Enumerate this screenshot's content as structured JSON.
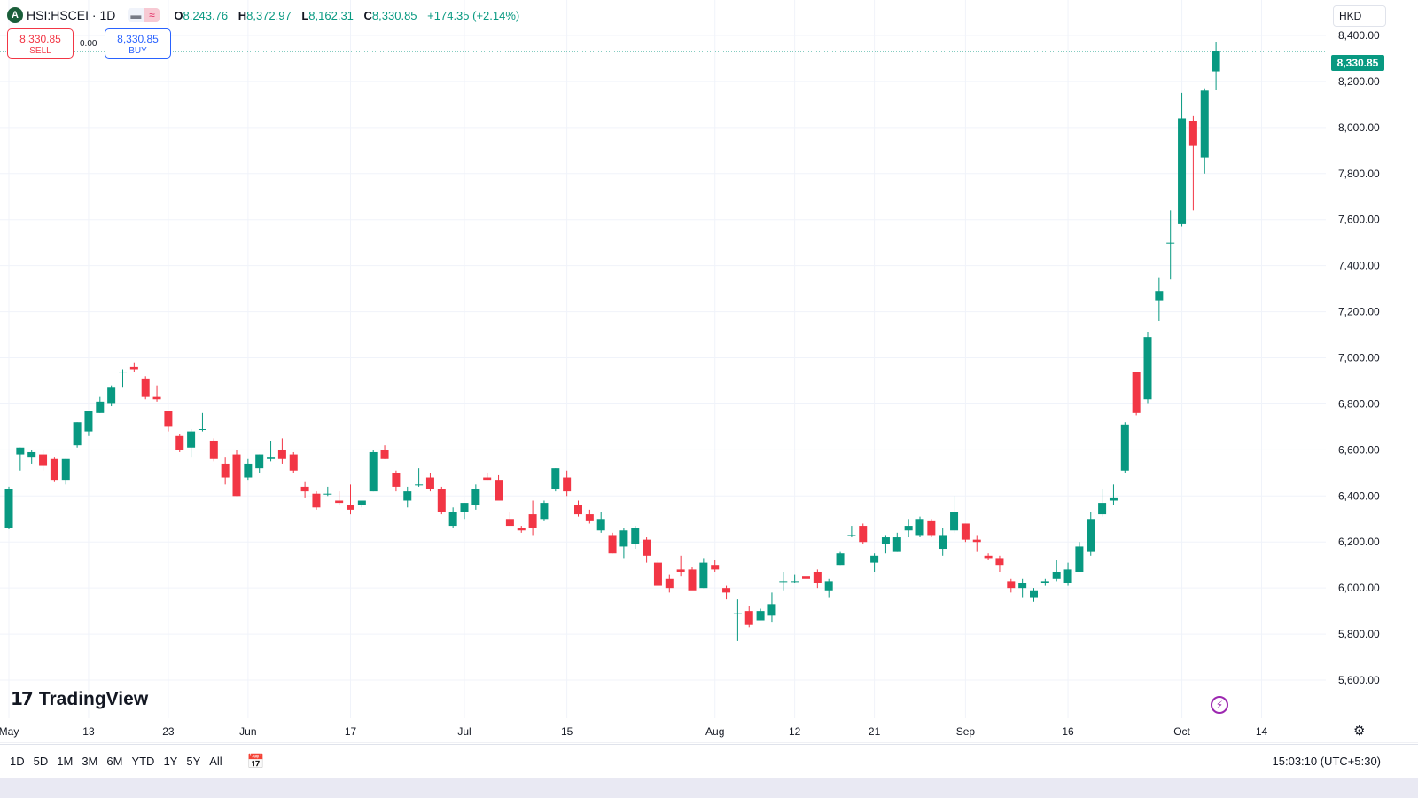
{
  "header": {
    "logo_letter": "A",
    "symbol": "HSI:HSCEI · 1D",
    "ohlc": {
      "o_label": "O",
      "o": "8,243.76",
      "h_label": "H",
      "h": "8,372.97",
      "l_label": "L",
      "l": "8,162.31",
      "c_label": "C",
      "c": "8,330.85",
      "change": "+174.35 (+2.14%)"
    }
  },
  "trade": {
    "sell_price": "8,330.85",
    "sell_label": "SELL",
    "spread": "0.00",
    "buy_price": "8,330.85",
    "buy_label": "BUY"
  },
  "currency": "HKD",
  "last_price_label": "8,330.85",
  "branding": {
    "name": "TradingView"
  },
  "toolbar": {
    "ranges": [
      "1D",
      "5D",
      "1M",
      "3M",
      "6M",
      "YTD",
      "1Y",
      "5Y",
      "All"
    ],
    "clock": "15:03:10 (UTC+5:30)"
  },
  "colors": {
    "up": "#089981",
    "down": "#f23645",
    "grid": "#f0f3fa"
  },
  "icons": [
    "calendar-icon",
    "gear-icon",
    "flash-icon"
  ],
  "chart_data": {
    "type": "candlestick",
    "interval": "1D",
    "ylim": [
      5500,
      8450
    ],
    "yticks": [
      5600,
      5800,
      6000,
      6200,
      6400,
      6600,
      6800,
      7000,
      7200,
      7400,
      7600,
      7800,
      8000,
      8200,
      8400
    ],
    "ytick_labels": [
      "5,600.00",
      "5,800.00",
      "6,000.00",
      "6,200.00",
      "6,400.00",
      "6,600.00",
      "6,800.00",
      "7,000.00",
      "7,200.00",
      "7,400.00",
      "7,600.00",
      "7,800.00",
      "8,000.00",
      "8,200.00",
      "8,400.00"
    ],
    "xticks": [
      {
        "i": 0,
        "label": "May"
      },
      {
        "i": 7,
        "label": "13"
      },
      {
        "i": 14,
        "label": "23"
      },
      {
        "i": 21,
        "label": "Jun"
      },
      {
        "i": 30,
        "label": "17"
      },
      {
        "i": 40,
        "label": "Jul"
      },
      {
        "i": 49,
        "label": "15"
      },
      {
        "i": 62,
        "label": "Aug"
      },
      {
        "i": 69,
        "label": "12"
      },
      {
        "i": 76,
        "label": "21"
      },
      {
        "i": 84,
        "label": "Sep"
      },
      {
        "i": 93,
        "label": "16"
      },
      {
        "i": 103,
        "label": "Oct"
      },
      {
        "i": 110,
        "label": "14"
      }
    ],
    "last_price": 8330.85,
    "candles": [
      {
        "o": 6260,
        "h": 6440,
        "l": 6255,
        "c": 6430
      },
      {
        "o": 6580,
        "h": 6610,
        "l": 6510,
        "c": 6610
      },
      {
        "o": 6570,
        "h": 6600,
        "l": 6540,
        "c": 6590
      },
      {
        "o": 6580,
        "h": 6600,
        "l": 6510,
        "c": 6530
      },
      {
        "o": 6560,
        "h": 6570,
        "l": 6460,
        "c": 6470
      },
      {
        "o": 6470,
        "h": 6560,
        "l": 6450,
        "c": 6560
      },
      {
        "o": 6620,
        "h": 6720,
        "l": 6610,
        "c": 6720
      },
      {
        "o": 6680,
        "h": 6770,
        "l": 6660,
        "c": 6770
      },
      {
        "o": 6760,
        "h": 6830,
        "l": 6760,
        "c": 6810
      },
      {
        "o": 6800,
        "h": 6880,
        "l": 6790,
        "c": 6870
      },
      {
        "o": 6940,
        "h": 6950,
        "l": 6870,
        "c": 6940
      },
      {
        "o": 6960,
        "h": 6980,
        "l": 6940,
        "c": 6950
      },
      {
        "o": 6910,
        "h": 6920,
        "l": 6820,
        "c": 6830
      },
      {
        "o": 6830,
        "h": 6880,
        "l": 6810,
        "c": 6820
      },
      {
        "o": 6770,
        "h": 6770,
        "l": 6680,
        "c": 6700
      },
      {
        "o": 6660,
        "h": 6670,
        "l": 6590,
        "c": 6600
      },
      {
        "o": 6610,
        "h": 6690,
        "l": 6570,
        "c": 6680
      },
      {
        "o": 6690,
        "h": 6760,
        "l": 6680,
        "c": 6690
      },
      {
        "o": 6640,
        "h": 6650,
        "l": 6550,
        "c": 6560
      },
      {
        "o": 6540,
        "h": 6570,
        "l": 6450,
        "c": 6480
      },
      {
        "o": 6580,
        "h": 6600,
        "l": 6400,
        "c": 6400
      },
      {
        "o": 6480,
        "h": 6560,
        "l": 6470,
        "c": 6540
      },
      {
        "o": 6520,
        "h": 6580,
        "l": 6500,
        "c": 6580
      },
      {
        "o": 6560,
        "h": 6640,
        "l": 6550,
        "c": 6570
      },
      {
        "o": 6600,
        "h": 6650,
        "l": 6540,
        "c": 6560
      },
      {
        "o": 6580,
        "h": 6590,
        "l": 6500,
        "c": 6510
      },
      {
        "o": 6440,
        "h": 6460,
        "l": 6390,
        "c": 6420
      },
      {
        "o": 6410,
        "h": 6420,
        "l": 6340,
        "c": 6350
      },
      {
        "o": 6410,
        "h": 6440,
        "l": 6400,
        "c": 6410
      },
      {
        "o": 6380,
        "h": 6420,
        "l": 6360,
        "c": 6370
      },
      {
        "o": 6360,
        "h": 6450,
        "l": 6320,
        "c": 6340
      },
      {
        "o": 6360,
        "h": 6380,
        "l": 6350,
        "c": 6380
      },
      {
        "o": 6420,
        "h": 6600,
        "l": 6420,
        "c": 6590
      },
      {
        "o": 6600,
        "h": 6620,
        "l": 6560,
        "c": 6560
      },
      {
        "o": 6500,
        "h": 6510,
        "l": 6420,
        "c": 6440
      },
      {
        "o": 6380,
        "h": 6440,
        "l": 6350,
        "c": 6420
      },
      {
        "o": 6450,
        "h": 6520,
        "l": 6440,
        "c": 6450
      },
      {
        "o": 6480,
        "h": 6500,
        "l": 6420,
        "c": 6430
      },
      {
        "o": 6430,
        "h": 6440,
        "l": 6320,
        "c": 6330
      },
      {
        "o": 6270,
        "h": 6350,
        "l": 6260,
        "c": 6330
      },
      {
        "o": 6330,
        "h": 6370,
        "l": 6300,
        "c": 6370
      },
      {
        "o": 6360,
        "h": 6450,
        "l": 6340,
        "c": 6430
      },
      {
        "o": 6480,
        "h": 6500,
        "l": 6470,
        "c": 6470
      },
      {
        "o": 6470,
        "h": 6490,
        "l": 6380,
        "c": 6380
      },
      {
        "o": 6300,
        "h": 6330,
        "l": 6270,
        "c": 6270
      },
      {
        "o": 6260,
        "h": 6270,
        "l": 6240,
        "c": 6250
      },
      {
        "o": 6320,
        "h": 6380,
        "l": 6230,
        "c": 6260
      },
      {
        "o": 6300,
        "h": 6380,
        "l": 6290,
        "c": 6370
      },
      {
        "o": 6430,
        "h": 6520,
        "l": 6420,
        "c": 6520
      },
      {
        "o": 6480,
        "h": 6510,
        "l": 6400,
        "c": 6420
      },
      {
        "o": 6360,
        "h": 6380,
        "l": 6310,
        "c": 6320
      },
      {
        "o": 6320,
        "h": 6340,
        "l": 6280,
        "c": 6290
      },
      {
        "o": 6250,
        "h": 6330,
        "l": 6240,
        "c": 6300
      },
      {
        "o": 6230,
        "h": 6240,
        "l": 6150,
        "c": 6150
      },
      {
        "o": 6180,
        "h": 6260,
        "l": 6130,
        "c": 6250
      },
      {
        "o": 6190,
        "h": 6270,
        "l": 6170,
        "c": 6260
      },
      {
        "o": 6210,
        "h": 6220,
        "l": 6110,
        "c": 6140
      },
      {
        "o": 6110,
        "h": 6120,
        "l": 6010,
        "c": 6010
      },
      {
        "o": 6040,
        "h": 6060,
        "l": 5980,
        "c": 6000
      },
      {
        "o": 6080,
        "h": 6140,
        "l": 6050,
        "c": 6070
      },
      {
        "o": 6080,
        "h": 6090,
        "l": 6000,
        "c": 5990
      },
      {
        "o": 6000,
        "h": 6130,
        "l": 6000,
        "c": 6110
      },
      {
        "o": 6100,
        "h": 6120,
        "l": 6070,
        "c": 6080
      },
      {
        "o": 6000,
        "h": 6010,
        "l": 5950,
        "c": 5980
      },
      {
        "o": 5890,
        "h": 5950,
        "l": 5770,
        "c": 5890
      },
      {
        "o": 5900,
        "h": 5920,
        "l": 5830,
        "c": 5840
      },
      {
        "o": 5860,
        "h": 5910,
        "l": 5860,
        "c": 5900
      },
      {
        "o": 5880,
        "h": 5980,
        "l": 5850,
        "c": 5930
      },
      {
        "o": 6030,
        "h": 6070,
        "l": 5990,
        "c": 6030
      },
      {
        "o": 6030,
        "h": 6060,
        "l": 6020,
        "c": 6030
      },
      {
        "o": 6050,
        "h": 6080,
        "l": 6020,
        "c": 6040
      },
      {
        "o": 6070,
        "h": 6080,
        "l": 6000,
        "c": 6020
      },
      {
        "o": 5990,
        "h": 6040,
        "l": 5960,
        "c": 6030
      },
      {
        "o": 6100,
        "h": 6160,
        "l": 6100,
        "c": 6150
      },
      {
        "o": 6230,
        "h": 6270,
        "l": 6220,
        "c": 6230
      },
      {
        "o": 6270,
        "h": 6280,
        "l": 6190,
        "c": 6200
      },
      {
        "o": 6110,
        "h": 6150,
        "l": 6070,
        "c": 6140
      },
      {
        "o": 6190,
        "h": 6230,
        "l": 6150,
        "c": 6220
      },
      {
        "o": 6160,
        "h": 6240,
        "l": 6160,
        "c": 6220
      },
      {
        "o": 6250,
        "h": 6300,
        "l": 6220,
        "c": 6270
      },
      {
        "o": 6230,
        "h": 6310,
        "l": 6220,
        "c": 6300
      },
      {
        "o": 6290,
        "h": 6300,
        "l": 6220,
        "c": 6230
      },
      {
        "o": 6170,
        "h": 6260,
        "l": 6140,
        "c": 6230
      },
      {
        "o": 6250,
        "h": 6400,
        "l": 6240,
        "c": 6330
      },
      {
        "o": 6280,
        "h": 6280,
        "l": 6200,
        "c": 6210
      },
      {
        "o": 6210,
        "h": 6230,
        "l": 6160,
        "c": 6200
      },
      {
        "o": 6140,
        "h": 6150,
        "l": 6120,
        "c": 6130
      },
      {
        "o": 6130,
        "h": 6140,
        "l": 6070,
        "c": 6100
      },
      {
        "o": 6030,
        "h": 6040,
        "l": 5980,
        "c": 6000
      },
      {
        "o": 6000,
        "h": 6040,
        "l": 5960,
        "c": 6020
      },
      {
        "o": 5960,
        "h": 6000,
        "l": 5940,
        "c": 5990
      },
      {
        "o": 6020,
        "h": 6040,
        "l": 6010,
        "c": 6030
      },
      {
        "o": 6040,
        "h": 6120,
        "l": 6030,
        "c": 6070
      },
      {
        "o": 6020,
        "h": 6110,
        "l": 6010,
        "c": 6080
      },
      {
        "o": 6070,
        "h": 6200,
        "l": 6070,
        "c": 6180
      },
      {
        "o": 6160,
        "h": 6330,
        "l": 6140,
        "c": 6300
      },
      {
        "o": 6320,
        "h": 6430,
        "l": 6310,
        "c": 6370
      },
      {
        "o": 6380,
        "h": 6450,
        "l": 6360,
        "c": 6390
      },
      {
        "o": 6510,
        "h": 6720,
        "l": 6500,
        "c": 6710
      },
      {
        "o": 6940,
        "h": 6940,
        "l": 6750,
        "c": 6760
      },
      {
        "o": 6820,
        "h": 7110,
        "l": 6800,
        "c": 7090
      },
      {
        "o": 7250,
        "h": 7350,
        "l": 7160,
        "c": 7290
      },
      {
        "o": 7500,
        "h": 7640,
        "l": 7340,
        "c": 7500
      },
      {
        "o": 7580,
        "h": 8150,
        "l": 7570,
        "c": 8040
      },
      {
        "o": 8030,
        "h": 8050,
        "l": 7640,
        "c": 7920
      },
      {
        "o": 7870,
        "h": 8170,
        "l": 7800,
        "c": 8160
      },
      {
        "o": 8243.76,
        "h": 8372.97,
        "l": 8162.31,
        "c": 8330.85
      }
    ]
  }
}
